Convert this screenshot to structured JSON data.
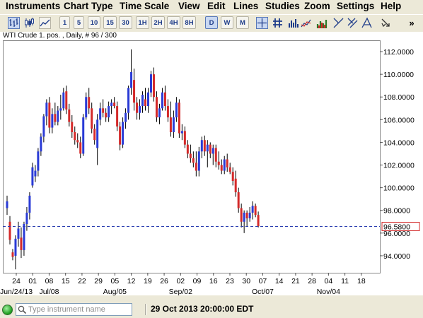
{
  "menu": [
    "Instruments",
    "Chart Type",
    "Time Scale",
    "View",
    "Edit",
    "Lines",
    "Studies",
    "Zoom",
    "Settings",
    "Help"
  ],
  "toolbar": {
    "timescale_buttons": [
      {
        "label": "1",
        "active": false
      },
      {
        "label": "5",
        "active": false
      },
      {
        "label": "10",
        "active": false
      },
      {
        "label": "15",
        "active": false
      },
      {
        "label": "30",
        "active": false
      },
      {
        "label": "1H",
        "active": false
      },
      {
        "label": "2H",
        "active": false
      },
      {
        "label": "4H",
        "active": false
      },
      {
        "label": "8H",
        "active": false
      },
      {
        "label": "D",
        "active": true
      },
      {
        "label": "W",
        "active": false
      },
      {
        "label": "M",
        "active": false
      }
    ],
    "chart_type_icons": [
      "bar-chart-icon",
      "candlestick-icon",
      "line-chart-icon"
    ],
    "tool_icons": [
      "crosshair-icon",
      "grid-icon",
      "volume-icon",
      "studies-icon",
      "trendline-icon",
      "channel-icon",
      "fibonacci-icon",
      "cursor-icon",
      "more-icon"
    ],
    "overflow_label": "»"
  },
  "chart_label": "WTI Crude 1. pos. , Daily, # 96 / 300",
  "chart_data": {
    "type": "candlestick",
    "title": "WTI Crude 1. pos. , Daily, # 96 / 300",
    "ylim": [
      92.5,
      113.0
    ],
    "y_ticks": [
      "94.0000",
      "96.0000",
      "98.0000",
      "100.0000",
      "102.0000",
      "104.0000",
      "106.0000",
      "108.0000",
      "110.0000",
      "112.0000"
    ],
    "x_day_ticks": [
      "24",
      "01",
      "08",
      "15",
      "22",
      "29",
      "05",
      "12",
      "19",
      "26",
      "02",
      "09",
      "16",
      "23",
      "30",
      "07",
      "14",
      "21",
      "28",
      "04",
      "11",
      "18"
    ],
    "x_month_ticks": [
      "Jun/24/13",
      "Jul/08",
      "Aug/05",
      "Sep/02",
      "Oct/07",
      "Nov/04"
    ],
    "current_price": "96.5800",
    "current_price_value": 96.58,
    "up_color": "#2a3bd6",
    "down_color": "#d42a2a",
    "price_line_color": "#2c3fb0",
    "candles": [
      {
        "o": 98.2,
        "h": 99.3,
        "l": 97.6,
        "c": 98.8
      },
      {
        "o": 97.0,
        "h": 97.5,
        "l": 95.0,
        "c": 95.4
      },
      {
        "o": 94.3,
        "h": 94.6,
        "l": 93.6,
        "c": 93.9
      },
      {
        "o": 94.0,
        "h": 95.8,
        "l": 92.8,
        "c": 95.5
      },
      {
        "o": 95.5,
        "h": 97.0,
        "l": 94.8,
        "c": 96.4
      },
      {
        "o": 95.6,
        "h": 96.5,
        "l": 93.8,
        "c": 94.5
      },
      {
        "o": 94.5,
        "h": 97.0,
        "l": 94.0,
        "c": 96.8
      },
      {
        "o": 96.8,
        "h": 98.3,
        "l": 96.2,
        "c": 97.8
      },
      {
        "o": 97.8,
        "h": 99.6,
        "l": 97.2,
        "c": 99.3
      },
      {
        "o": 100.2,
        "h": 102.2,
        "l": 100.0,
        "c": 101.8
      },
      {
        "o": 101.0,
        "h": 102.0,
        "l": 100.5,
        "c": 101.5
      },
      {
        "o": 101.5,
        "h": 103.5,
        "l": 101.0,
        "c": 103.2
      },
      {
        "o": 103.2,
        "h": 104.8,
        "l": 102.8,
        "c": 104.5
      },
      {
        "o": 104.5,
        "h": 106.5,
        "l": 104.0,
        "c": 106.3
      },
      {
        "o": 106.3,
        "h": 107.8,
        "l": 105.5,
        "c": 107.5
      },
      {
        "o": 107.5,
        "h": 108.0,
        "l": 104.8,
        "c": 105.3
      },
      {
        "o": 105.3,
        "h": 107.0,
        "l": 104.8,
        "c": 106.5
      },
      {
        "o": 106.5,
        "h": 107.5,
        "l": 105.5,
        "c": 105.8
      },
      {
        "o": 105.8,
        "h": 107.2,
        "l": 105.5,
        "c": 106.8
      },
      {
        "o": 106.8,
        "h": 108.2,
        "l": 106.0,
        "c": 107.0
      },
      {
        "o": 107.0,
        "h": 108.8,
        "l": 106.8,
        "c": 108.4
      },
      {
        "o": 108.5,
        "h": 109.0,
        "l": 106.5,
        "c": 106.9
      },
      {
        "o": 106.9,
        "h": 107.4,
        "l": 105.4,
        "c": 105.8
      },
      {
        "o": 105.8,
        "h": 106.4,
        "l": 104.4,
        "c": 104.9
      },
      {
        "o": 104.9,
        "h": 105.4,
        "l": 103.8,
        "c": 104.2
      },
      {
        "o": 104.2,
        "h": 104.8,
        "l": 103.5,
        "c": 104.0
      },
      {
        "o": 104.0,
        "h": 104.5,
        "l": 102.6,
        "c": 103.0
      },
      {
        "o": 103.0,
        "h": 106.5,
        "l": 102.8,
        "c": 106.2
      },
      {
        "o": 106.2,
        "h": 108.4,
        "l": 106.0,
        "c": 108.0
      },
      {
        "o": 108.0,
        "h": 108.8,
        "l": 106.5,
        "c": 107.0
      },
      {
        "o": 107.0,
        "h": 107.5,
        "l": 104.8,
        "c": 105.2
      },
      {
        "o": 105.2,
        "h": 105.6,
        "l": 103.8,
        "c": 104.2
      },
      {
        "o": 103.5,
        "h": 106.5,
        "l": 102.0,
        "c": 106.0
      },
      {
        "o": 106.0,
        "h": 107.5,
        "l": 105.5,
        "c": 107.0
      },
      {
        "o": 107.0,
        "h": 107.8,
        "l": 106.2,
        "c": 106.6
      },
      {
        "o": 106.6,
        "h": 107.0,
        "l": 105.8,
        "c": 106.2
      },
      {
        "o": 106.2,
        "h": 107.6,
        "l": 105.8,
        "c": 107.2
      },
      {
        "o": 107.2,
        "h": 107.8,
        "l": 106.5,
        "c": 107.5
      },
      {
        "o": 107.5,
        "h": 108.0,
        "l": 107.0,
        "c": 107.2
      },
      {
        "o": 107.2,
        "h": 107.6,
        "l": 105.0,
        "c": 105.4
      },
      {
        "o": 105.4,
        "h": 105.8,
        "l": 103.3,
        "c": 103.8
      },
      {
        "o": 103.8,
        "h": 106.2,
        "l": 103.5,
        "c": 105.8
      },
      {
        "o": 105.8,
        "h": 107.0,
        "l": 105.2,
        "c": 106.6
      },
      {
        "o": 106.6,
        "h": 109.0,
        "l": 106.0,
        "c": 108.8
      },
      {
        "o": 108.8,
        "h": 112.2,
        "l": 108.2,
        "c": 110.2
      },
      {
        "o": 109.5,
        "h": 110.5,
        "l": 106.8,
        "c": 107.5
      },
      {
        "o": 107.5,
        "h": 108.0,
        "l": 106.0,
        "c": 106.6
      },
      {
        "o": 106.6,
        "h": 107.8,
        "l": 106.0,
        "c": 107.2
      },
      {
        "o": 107.2,
        "h": 108.5,
        "l": 106.6,
        "c": 108.2
      },
      {
        "o": 107.8,
        "h": 108.8,
        "l": 106.8,
        "c": 107.2
      },
      {
        "o": 107.2,
        "h": 108.8,
        "l": 106.6,
        "c": 108.4
      },
      {
        "o": 108.4,
        "h": 110.3,
        "l": 108.0,
        "c": 110.0
      },
      {
        "o": 110.0,
        "h": 110.6,
        "l": 107.6,
        "c": 108.0
      },
      {
        "o": 108.0,
        "h": 108.5,
        "l": 105.8,
        "c": 106.2
      },
      {
        "o": 106.2,
        "h": 107.4,
        "l": 105.6,
        "c": 107.0
      },
      {
        "o": 107.0,
        "h": 108.8,
        "l": 106.8,
        "c": 108.4
      },
      {
        "o": 108.4,
        "h": 109.0,
        "l": 106.8,
        "c": 107.2
      },
      {
        "o": 107.2,
        "h": 107.8,
        "l": 105.8,
        "c": 106.2
      },
      {
        "o": 106.2,
        "h": 107.6,
        "l": 104.5,
        "c": 104.9
      },
      {
        "o": 104.9,
        "h": 106.8,
        "l": 104.4,
        "c": 106.2
      },
      {
        "o": 106.2,
        "h": 108.0,
        "l": 105.8,
        "c": 107.5
      },
      {
        "o": 107.5,
        "h": 107.8,
        "l": 104.4,
        "c": 104.8
      },
      {
        "o": 104.8,
        "h": 105.6,
        "l": 104.2,
        "c": 105.0
      },
      {
        "o": 105.0,
        "h": 105.4,
        "l": 103.5,
        "c": 103.8
      },
      {
        "o": 103.8,
        "h": 104.2,
        "l": 102.6,
        "c": 103.0
      },
      {
        "o": 103.0,
        "h": 103.8,
        "l": 102.2,
        "c": 102.6
      },
      {
        "o": 102.6,
        "h": 103.2,
        "l": 101.8,
        "c": 102.2
      },
      {
        "o": 102.2,
        "h": 103.2,
        "l": 101.0,
        "c": 101.5
      },
      {
        "o": 101.5,
        "h": 103.6,
        "l": 101.0,
        "c": 103.2
      },
      {
        "o": 103.2,
        "h": 104.5,
        "l": 102.6,
        "c": 104.2
      },
      {
        "o": 104.2,
        "h": 104.6,
        "l": 102.8,
        "c": 103.2
      },
      {
        "o": 103.2,
        "h": 104.2,
        "l": 101.8,
        "c": 103.8
      },
      {
        "o": 103.8,
        "h": 104.0,
        "l": 102.6,
        "c": 103.0
      },
      {
        "o": 103.0,
        "h": 103.8,
        "l": 102.0,
        "c": 103.5
      },
      {
        "o": 103.5,
        "h": 103.8,
        "l": 101.8,
        "c": 102.3
      },
      {
        "o": 102.3,
        "h": 103.2,
        "l": 101.6,
        "c": 102.0
      },
      {
        "o": 102.0,
        "h": 102.5,
        "l": 101.2,
        "c": 101.5
      },
      {
        "o": 101.5,
        "h": 102.8,
        "l": 101.2,
        "c": 102.5
      },
      {
        "o": 102.5,
        "h": 103.0,
        "l": 101.4,
        "c": 101.8
      },
      {
        "o": 101.8,
        "h": 102.2,
        "l": 101.2,
        "c": 101.4
      },
      {
        "o": 101.4,
        "h": 101.8,
        "l": 100.2,
        "c": 100.6
      },
      {
        "o": 100.8,
        "h": 101.5,
        "l": 99.2,
        "c": 99.6
      },
      {
        "o": 99.6,
        "h": 100.0,
        "l": 97.8,
        "c": 98.2
      },
      {
        "o": 98.2,
        "h": 98.6,
        "l": 96.5,
        "c": 97.0
      },
      {
        "o": 97.0,
        "h": 98.0,
        "l": 96.0,
        "c": 97.8
      },
      {
        "o": 97.8,
        "h": 98.0,
        "l": 96.6,
        "c": 97.3
      },
      {
        "o": 97.3,
        "h": 98.3,
        "l": 97.0,
        "c": 97.8
      },
      {
        "o": 97.8,
        "h": 98.8,
        "l": 97.2,
        "c": 98.4
      },
      {
        "o": 98.4,
        "h": 98.6,
        "l": 97.4,
        "c": 97.6
      },
      {
        "o": 97.6,
        "h": 97.9,
        "l": 96.5,
        "c": 96.6
      }
    ]
  },
  "status": {
    "search_placeholder": "Type instrument name",
    "datetime": "29 Oct 2013 20:00:00 EDT"
  }
}
